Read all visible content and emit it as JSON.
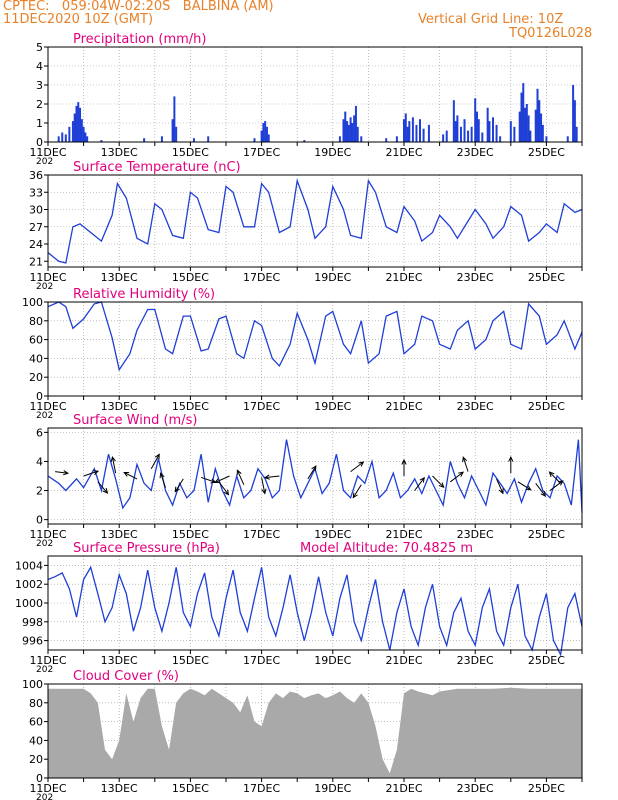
{
  "header": {
    "line1": "CPTEC:   059:04W-02:20S   BALBINA (AM)",
    "line2": "11DEC2020 10Z (GMT)",
    "grid_note": "Vertical Grid Line: 10Z",
    "code": "TQ0126L028"
  },
  "colors": {
    "title": "#e3007e",
    "header": "#e8822a",
    "line": "#1f3fd6",
    "cloud": "#a9a9a9",
    "grid": "#9a9a9a",
    "arrow": "#000000"
  },
  "x_axis": {
    "tick_labels": [
      "11DEC",
      "13DEC",
      "15DEC",
      "17DEC",
      "19DEC",
      "21DEC",
      "23DEC",
      "25DEC"
    ],
    "start_day": 11,
    "end_day": 26,
    "year_fragment": "202"
  },
  "chart_data": [
    {
      "type": "bar",
      "title": "Precipitation (mm/h)",
      "ylim": [
        0,
        5
      ],
      "yticks": [
        0,
        1,
        2,
        3,
        4,
        5
      ],
      "ytick_labels": [
        "0",
        "1",
        "2",
        "3",
        "4",
        "5"
      ],
      "bars": [
        [
          11.3,
          0.3
        ],
        [
          11.4,
          0.5
        ],
        [
          11.5,
          0.4
        ],
        [
          11.6,
          0.8
        ],
        [
          11.7,
          1.1
        ],
        [
          11.75,
          1.5
        ],
        [
          11.8,
          1.9
        ],
        [
          11.85,
          2.1
        ],
        [
          11.9,
          1.8
        ],
        [
          11.95,
          1.2
        ],
        [
          12.0,
          0.8
        ],
        [
          12.05,
          0.5
        ],
        [
          12.1,
          0.3
        ],
        [
          12.5,
          0.1
        ],
        [
          13.7,
          0.2
        ],
        [
          14.2,
          0.3
        ],
        [
          14.5,
          1.2
        ],
        [
          14.55,
          2.4
        ],
        [
          14.6,
          0.8
        ],
        [
          15.1,
          0.2
        ],
        [
          15.5,
          0.3
        ],
        [
          16.8,
          0.2
        ],
        [
          17.0,
          0.6
        ],
        [
          17.05,
          1.0
        ],
        [
          17.1,
          1.1
        ],
        [
          17.15,
          0.8
        ],
        [
          17.2,
          0.4
        ],
        [
          18.2,
          0.1
        ],
        [
          19.2,
          0.3
        ],
        [
          19.3,
          1.2
        ],
        [
          19.35,
          1.6
        ],
        [
          19.4,
          1.1
        ],
        [
          19.45,
          0.9
        ],
        [
          19.5,
          1.3
        ],
        [
          19.55,
          1.0
        ],
        [
          19.6,
          1.4
        ],
        [
          19.65,
          1.9
        ],
        [
          19.7,
          0.8
        ],
        [
          19.8,
          0.3
        ],
        [
          20.5,
          0.2
        ],
        [
          20.8,
          0.3
        ],
        [
          21.0,
          1.2
        ],
        [
          21.05,
          1.5
        ],
        [
          21.1,
          0.8
        ],
        [
          21.15,
          1.1
        ],
        [
          21.25,
          1.3
        ],
        [
          21.35,
          0.9
        ],
        [
          21.45,
          1.2
        ],
        [
          21.55,
          0.7
        ],
        [
          21.7,
          0.9
        ],
        [
          22.1,
          0.4
        ],
        [
          22.2,
          0.6
        ],
        [
          22.4,
          2.2
        ],
        [
          22.45,
          1.1
        ],
        [
          22.5,
          1.4
        ],
        [
          22.6,
          0.8
        ],
        [
          22.7,
          1.2
        ],
        [
          22.8,
          0.6
        ],
        [
          22.9,
          0.8
        ],
        [
          23.0,
          2.3
        ],
        [
          23.05,
          1.6
        ],
        [
          23.1,
          1.2
        ],
        [
          23.2,
          0.5
        ],
        [
          23.35,
          1.8
        ],
        [
          23.4,
          1.1
        ],
        [
          23.5,
          1.3
        ],
        [
          23.6,
          0.9
        ],
        [
          23.7,
          0.3
        ],
        [
          24.0,
          1.1
        ],
        [
          24.1,
          0.8
        ],
        [
          24.25,
          1.6
        ],
        [
          24.3,
          2.6
        ],
        [
          24.35,
          3.1
        ],
        [
          24.4,
          1.8
        ],
        [
          24.45,
          2.0
        ],
        [
          24.5,
          1.4
        ],
        [
          24.55,
          0.6
        ],
        [
          24.7,
          1.7
        ],
        [
          24.75,
          2.8
        ],
        [
          24.8,
          2.2
        ],
        [
          24.85,
          1.5
        ],
        [
          24.9,
          0.9
        ],
        [
          25.0,
          0.3
        ],
        [
          25.6,
          0.3
        ],
        [
          25.75,
          3.0
        ],
        [
          25.8,
          2.2
        ],
        [
          25.85,
          0.8
        ]
      ]
    },
    {
      "type": "line",
      "title": "Surface Temperature (nC)",
      "ylim": [
        20,
        36
      ],
      "yticks": [
        21,
        24,
        27,
        30,
        33,
        36
      ],
      "ytick_labels": [
        "21",
        "24",
        "27",
        "30",
        "33",
        "36"
      ],
      "x": [
        11.0,
        11.3,
        11.5,
        11.7,
        11.9,
        12.2,
        12.5,
        12.8,
        12.95,
        13.2,
        13.5,
        13.8,
        14.0,
        14.2,
        14.5,
        14.8,
        15.0,
        15.2,
        15.5,
        15.8,
        16.0,
        16.2,
        16.5,
        16.8,
        17.0,
        17.2,
        17.5,
        17.8,
        18.0,
        18.3,
        18.5,
        18.8,
        19.0,
        19.3,
        19.5,
        19.8,
        20.0,
        20.2,
        20.5,
        20.8,
        21.0,
        21.3,
        21.5,
        21.8,
        22.0,
        22.3,
        22.5,
        22.8,
        23.0,
        23.3,
        23.5,
        23.8,
        24.0,
        24.3,
        24.5,
        24.8,
        25.0,
        25.3,
        25.5,
        25.8,
        26.0
      ],
      "y": [
        22.5,
        21.0,
        20.7,
        27.0,
        27.5,
        26.0,
        24.5,
        29.0,
        34.5,
        32.0,
        25.0,
        24.0,
        31.0,
        30.0,
        25.5,
        25.0,
        33.0,
        32.0,
        26.5,
        26.0,
        34.0,
        33.0,
        27.0,
        27.0,
        34.5,
        33.0,
        26.0,
        27.0,
        35.0,
        30.0,
        25.0,
        27.0,
        34.0,
        30.0,
        25.5,
        25.0,
        35.0,
        33.0,
        27.0,
        26.0,
        30.5,
        28.0,
        24.5,
        26.0,
        29.0,
        27.0,
        25.0,
        28.0,
        30.0,
        27.5,
        25.0,
        27.0,
        30.5,
        29.0,
        24.5,
        26.0,
        27.5,
        26.0,
        31.0,
        29.5,
        30.0
      ]
    },
    {
      "type": "line",
      "title": "Relative Humidity (%)",
      "ylim": [
        0,
        100
      ],
      "yticks": [
        0,
        20,
        40,
        60,
        80,
        100
      ],
      "ytick_labels": [
        "0",
        "20",
        "40",
        "60",
        "80",
        "100"
      ],
      "x": [
        11.0,
        11.3,
        11.5,
        11.7,
        12.0,
        12.3,
        12.5,
        12.8,
        13.0,
        13.3,
        13.5,
        13.8,
        14.0,
        14.3,
        14.5,
        14.8,
        15.0,
        15.3,
        15.5,
        15.8,
        16.0,
        16.3,
        16.5,
        16.8,
        17.0,
        17.3,
        17.5,
        17.8,
        18.0,
        18.3,
        18.5,
        18.8,
        19.0,
        19.3,
        19.5,
        19.8,
        20.0,
        20.3,
        20.5,
        20.8,
        21.0,
        21.3,
        21.5,
        21.8,
        22.0,
        22.3,
        22.5,
        22.8,
        23.0,
        23.3,
        23.5,
        23.8,
        24.0,
        24.3,
        24.5,
        24.8,
        25.0,
        25.3,
        25.5,
        25.8,
        26.0
      ],
      "y": [
        95,
        100,
        95,
        72,
        82,
        98,
        100,
        62,
        28,
        45,
        70,
        92,
        92,
        50,
        45,
        85,
        85,
        48,
        50,
        82,
        85,
        45,
        40,
        80,
        75,
        40,
        32,
        55,
        88,
        60,
        35,
        85,
        90,
        55,
        45,
        80,
        35,
        45,
        85,
        90,
        45,
        55,
        85,
        80,
        55,
        50,
        70,
        80,
        50,
        60,
        80,
        90,
        55,
        50,
        98,
        85,
        55,
        65,
        80,
        50,
        68
      ]
    },
    {
      "type": "line",
      "title": "Surface Wind (m/s)",
      "ylim": [
        -0.3,
        6.3
      ],
      "yticks": [
        0,
        2,
        4,
        6
      ],
      "ytick_labels": [
        "0",
        "2",
        "4",
        "6"
      ],
      "x": [
        11.0,
        11.3,
        11.5,
        11.8,
        12.0,
        12.3,
        12.5,
        12.7,
        12.9,
        13.1,
        13.3,
        13.5,
        13.7,
        13.9,
        14.1,
        14.3,
        14.5,
        14.7,
        14.9,
        15.1,
        15.3,
        15.5,
        15.7,
        15.9,
        16.1,
        16.3,
        16.5,
        16.7,
        16.9,
        17.1,
        17.3,
        17.5,
        17.7,
        17.9,
        18.1,
        18.3,
        18.5,
        18.7,
        18.9,
        19.1,
        19.3,
        19.5,
        19.7,
        19.9,
        20.1,
        20.3,
        20.5,
        20.7,
        20.9,
        21.1,
        21.3,
        21.5,
        21.7,
        21.9,
        22.1,
        22.3,
        22.5,
        22.7,
        22.9,
        23.1,
        23.3,
        23.5,
        23.7,
        23.9,
        24.1,
        24.3,
        24.5,
        24.7,
        24.9,
        25.1,
        25.3,
        25.5,
        25.7,
        25.9,
        26.0
      ],
      "y": [
        3.0,
        2.5,
        2.0,
        2.8,
        2.2,
        3.5,
        2.0,
        4.5,
        2.8,
        0.8,
        1.5,
        3.8,
        2.5,
        2.0,
        4.2,
        2.0,
        1.0,
        2.5,
        1.5,
        2.0,
        4.5,
        1.2,
        3.5,
        2.0,
        1.0,
        3.0,
        1.5,
        2.0,
        3.5,
        2.8,
        1.5,
        2.0,
        5.5,
        3.0,
        1.5,
        2.5,
        3.5,
        1.8,
        2.5,
        4.5,
        2.0,
        1.5,
        3.0,
        2.5,
        4.0,
        1.5,
        2.0,
        3.2,
        1.5,
        2.0,
        2.8,
        1.8,
        3.0,
        2.0,
        1.0,
        4.0,
        2.5,
        1.5,
        3.0,
        2.0,
        1.0,
        3.2,
        2.5,
        1.8,
        2.8,
        1.2,
        2.5,
        3.5,
        2.0,
        1.5,
        3.0,
        2.5,
        1.0,
        5.5,
        0.5
      ]
    },
    {
      "type": "line",
      "title": "Surface Pressure (hPa)",
      "annotation": "Model Altitude: 70.4825  m",
      "ylim": [
        995,
        1005
      ],
      "yticks": [
        996,
        998,
        1000,
        1002,
        1004
      ],
      "ytick_labels": [
        "996",
        "998",
        "1000",
        "1002",
        "1004"
      ],
      "x": [
        11.0,
        11.2,
        11.4,
        11.6,
        11.8,
        12.0,
        12.2,
        12.4,
        12.6,
        12.8,
        13.0,
        13.2,
        13.4,
        13.6,
        13.8,
        14.0,
        14.2,
        14.4,
        14.6,
        14.8,
        15.0,
        15.2,
        15.4,
        15.6,
        15.8,
        16.0,
        16.2,
        16.4,
        16.6,
        16.8,
        17.0,
        17.2,
        17.4,
        17.6,
        17.8,
        18.0,
        18.2,
        18.4,
        18.6,
        18.8,
        19.0,
        19.2,
        19.4,
        19.6,
        19.8,
        20.0,
        20.2,
        20.4,
        20.6,
        20.8,
        21.0,
        21.2,
        21.4,
        21.6,
        21.8,
        22.0,
        22.2,
        22.4,
        22.6,
        22.8,
        23.0,
        23.2,
        23.4,
        23.6,
        23.8,
        24.0,
        24.2,
        24.4,
        24.6,
        24.8,
        25.0,
        25.2,
        25.4,
        25.6,
        25.8,
        26.0
      ],
      "y": [
        1002.5,
        1002.8,
        1003.2,
        1001.5,
        998.5,
        1002.5,
        1003.8,
        1001.0,
        998.0,
        999.5,
        1003.0,
        1001.0,
        997.0,
        999.5,
        1003.5,
        999.5,
        997.0,
        1000.0,
        1003.8,
        999.0,
        997.5,
        1001.0,
        1003.2,
        998.5,
        996.5,
        1000.5,
        1003.5,
        999.0,
        997.0,
        1000.5,
        1003.8,
        998.5,
        996.5,
        999.5,
        1003.0,
        999.0,
        996.0,
        999.0,
        1002.8,
        999.0,
        996.5,
        1000.5,
        1003.0,
        998.0,
        996.0,
        999.5,
        1002.5,
        998.0,
        995.0,
        999.0,
        1001.5,
        997.5,
        995.5,
        999.5,
        1002.0,
        997.5,
        995.5,
        999.0,
        1000.5,
        997.0,
        995.5,
        999.5,
        1001.5,
        997.0,
        995.5,
        999.5,
        1002.0,
        996.5,
        995.0,
        998.5,
        1001.0,
        996.0,
        994.5,
        999.5,
        1001.0,
        997.5
      ]
    },
    {
      "type": "bar",
      "title": "Cloud Cover (%)",
      "ylim": [
        0,
        100
      ],
      "yticks": [
        0,
        20,
        40,
        60,
        80,
        100
      ],
      "ytick_labels": [
        "0",
        "20",
        "40",
        "60",
        "80",
        "100"
      ],
      "x": [
        11.0,
        11.5,
        12.0,
        12.2,
        12.4,
        12.6,
        12.8,
        13.0,
        13.2,
        13.4,
        13.6,
        13.8,
        14.0,
        14.2,
        14.4,
        14.6,
        14.8,
        15.0,
        15.2,
        15.4,
        15.6,
        15.8,
        16.0,
        16.2,
        16.4,
        16.6,
        16.8,
        17.0,
        17.2,
        17.4,
        17.6,
        17.8,
        18.0,
        18.2,
        18.4,
        18.6,
        18.8,
        19.0,
        19.2,
        19.4,
        19.6,
        19.8,
        20.0,
        20.2,
        20.4,
        20.6,
        20.8,
        21.0,
        21.2,
        21.4,
        21.6,
        21.8,
        22.0,
        22.5,
        23.0,
        23.5,
        24.0,
        24.5,
        25.0,
        25.5,
        26.0
      ],
      "y": [
        95,
        95,
        95,
        90,
        80,
        30,
        20,
        40,
        90,
        60,
        85,
        95,
        95,
        55,
        30,
        80,
        90,
        95,
        92,
        88,
        95,
        90,
        85,
        80,
        70,
        88,
        60,
        55,
        80,
        90,
        85,
        92,
        90,
        85,
        88,
        90,
        85,
        88,
        92,
        85,
        80,
        90,
        80,
        55,
        20,
        5,
        30,
        90,
        95,
        92,
        90,
        88,
        92,
        95,
        95,
        95,
        96,
        95,
        95,
        95,
        95
      ]
    }
  ],
  "wind_arrows": [
    {
      "x": 11.2,
      "speed": 3.3,
      "dx": 0.8,
      "dy": 0.1
    },
    {
      "x": 12.0,
      "speed": 3.0,
      "dx": 0.9,
      "dy": -0.3
    },
    {
      "x": 12.4,
      "speed": 2.6,
      "dx": 0.6,
      "dy": 0.7
    },
    {
      "x": 12.9,
      "speed": 3.2,
      "dx": -0.2,
      "dy": -1.0
    },
    {
      "x": 13.5,
      "speed": 2.8,
      "dx": -0.8,
      "dy": -0.4
    },
    {
      "x": 13.9,
      "speed": 3.5,
      "dx": 0.5,
      "dy": -0.9
    },
    {
      "x": 14.3,
      "speed": 2.2,
      "dx": -0.3,
      "dy": -0.9
    },
    {
      "x": 14.8,
      "speed": 2.8,
      "dx": -0.5,
      "dy": 0.8
    },
    {
      "x": 15.3,
      "speed": 2.9,
      "dx": 0.9,
      "dy": 0.3
    },
    {
      "x": 15.8,
      "speed": 2.6,
      "dx": 0.6,
      "dy": 0.8
    },
    {
      "x": 16.1,
      "speed": 3.0,
      "dx": -0.9,
      "dy": 0.4
    },
    {
      "x": 16.5,
      "speed": 2.4,
      "dx": -0.4,
      "dy": -0.9
    },
    {
      "x": 17.0,
      "speed": 2.9,
      "dx": 0.2,
      "dy": 1.0
    },
    {
      "x": 17.5,
      "speed": 3.0,
      "dx": -0.9,
      "dy": 0.1
    },
    {
      "x": 18.3,
      "speed": 2.8,
      "dx": 0.5,
      "dy": -0.8
    },
    {
      "x": 19.5,
      "speed": 3.3,
      "dx": 0.8,
      "dy": -0.6
    },
    {
      "x": 19.8,
      "speed": 2.4,
      "dx": -0.5,
      "dy": 0.8
    },
    {
      "x": 21.0,
      "speed": 3.0,
      "dx": 0.0,
      "dy": -1.0
    },
    {
      "x": 21.3,
      "speed": 2.0,
      "dx": 0.6,
      "dy": -0.8
    },
    {
      "x": 21.8,
      "speed": 3.0,
      "dx": 0.7,
      "dy": 0.7
    },
    {
      "x": 22.3,
      "speed": 2.6,
      "dx": 0.8,
      "dy": -0.6
    },
    {
      "x": 22.8,
      "speed": 3.3,
      "dx": -0.3,
      "dy": -0.9
    },
    {
      "x": 23.6,
      "speed": 2.8,
      "dx": 0.4,
      "dy": 0.9
    },
    {
      "x": 24.0,
      "speed": 3.2,
      "dx": 0.0,
      "dy": -1.0
    },
    {
      "x": 24.2,
      "speed": 2.6,
      "dx": 0.8,
      "dy": 0.5
    },
    {
      "x": 24.7,
      "speed": 2.5,
      "dx": 0.6,
      "dy": 0.8
    },
    {
      "x": 25.1,
      "speed": 2.0,
      "dx": 0.8,
      "dy": -0.6
    },
    {
      "x": 25.4,
      "speed": 2.5,
      "dx": -0.7,
      "dy": -0.7
    }
  ]
}
